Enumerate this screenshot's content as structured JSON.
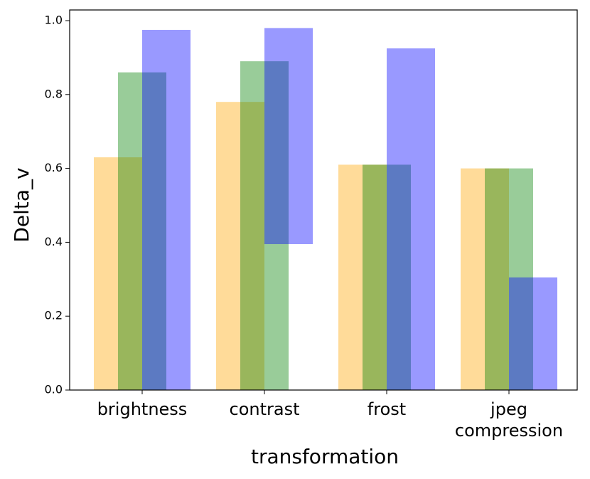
{
  "chart_data": {
    "type": "bar",
    "x_label": "transformation",
    "y_label": "Delta_v",
    "categories": [
      "brightness",
      "contrast",
      "frost",
      "jpeg\ncompression"
    ],
    "series": [
      {
        "color": "orange",
        "values": [
          0.63,
          0.78,
          0.61,
          0.6
        ]
      },
      {
        "color": "green",
        "values": [
          0.86,
          0.89,
          0.61,
          0.6
        ]
      },
      {
        "color": "blue",
        "values": [
          0.975,
          0.98,
          0.925,
          0.305
        ],
        "bottoms": [
          0,
          0.395,
          0,
          0
        ]
      }
    ],
    "alpha": 0.4,
    "ylim": [
      0,
      1.0
    ],
    "yticks": [
      {
        "value": 0,
        "label": "0.0"
      },
      0.2,
      0.4,
      0.6,
      0.8,
      {
        "value": 1.0,
        "label": "1.0"
      }
    ]
  }
}
